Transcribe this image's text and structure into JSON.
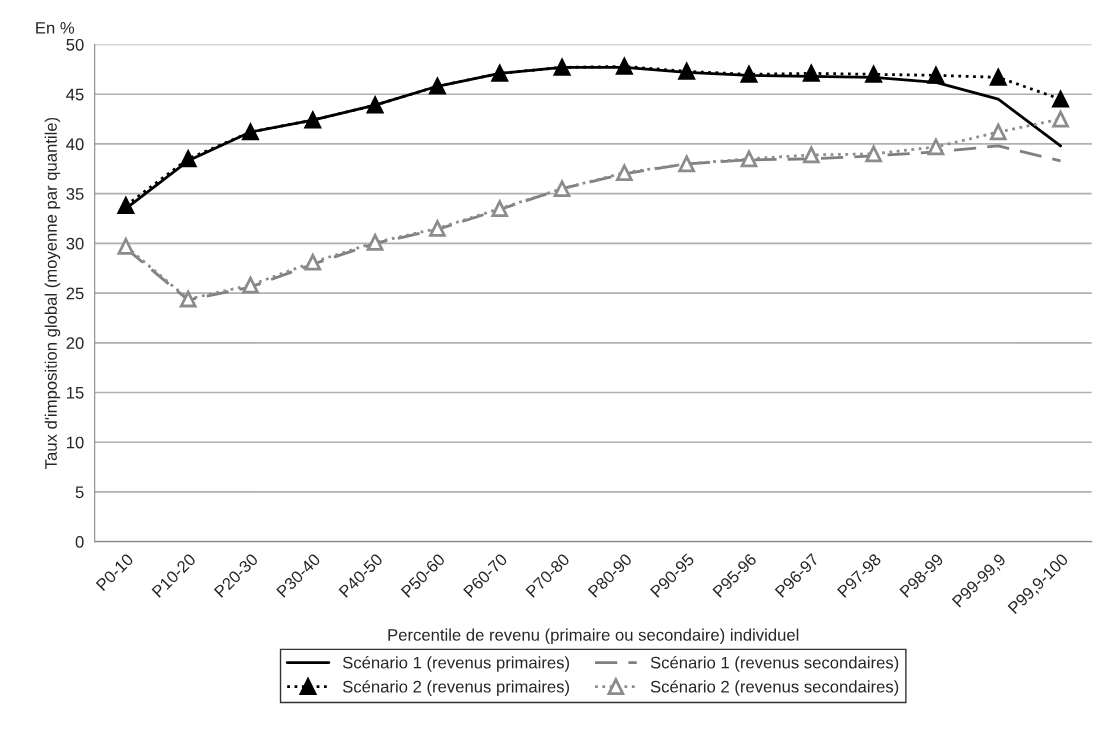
{
  "chart_data": {
    "type": "line",
    "xlabel": "Percentile de revenu (primaire ou secondaire) individuel",
    "ylabel": "Taux d'imposition global (moyenne par quantile)",
    "annotations": [
      "En %"
    ],
    "categories": [
      "P0-10",
      "P10-20",
      "P20-30",
      "P30-40",
      "P40-50",
      "P50-60",
      "P60-70",
      "P70-80",
      "P80-90",
      "P90-95",
      "P95-96",
      "P96-97",
      "P97-98",
      "P98-99",
      "P99-99,9",
      "P99,9-100"
    ],
    "ylim": [
      0,
      50
    ],
    "yticks": [
      0,
      5,
      10,
      15,
      20,
      25,
      30,
      35,
      40,
      45,
      50
    ],
    "grid": "y",
    "legend": "bottom",
    "series": [
      {
        "name": "Scénario 1 (revenus primaires)",
        "color": "#000000",
        "line_style": "solid",
        "marker": "none",
        "values": [
          33.5,
          38.3,
          41.2,
          42.4,
          43.9,
          45.8,
          47.1,
          47.7,
          47.7,
          47.2,
          46.9,
          46.8,
          46.7,
          46.2,
          44.5,
          39.8
        ]
      },
      {
        "name": "Scénario 1 (revenus secondaires)",
        "color": "#7f7f7f",
        "line_style": "dashed",
        "marker": "none",
        "values": [
          29.5,
          24.3,
          25.6,
          27.9,
          30.0,
          31.4,
          33.4,
          35.5,
          37.0,
          38.0,
          38.4,
          38.5,
          38.8,
          39.2,
          39.8,
          38.3
        ]
      },
      {
        "name": "Scénario 2 (revenus primaires)",
        "color": "#000000",
        "line_style": "dotted",
        "marker": "triangle",
        "values": [
          33.8,
          38.5,
          41.2,
          42.4,
          43.9,
          45.8,
          47.1,
          47.7,
          47.8,
          47.3,
          47.0,
          47.1,
          47.0,
          46.9,
          46.7,
          44.5
        ]
      },
      {
        "name": "Scénario 2 (revenus secondaires)",
        "color": "#8c8c8c",
        "line_style": "dotted",
        "marker": "triangle",
        "values": [
          29.7,
          24.4,
          25.8,
          28.1,
          30.1,
          31.5,
          33.5,
          35.5,
          37.1,
          38.0,
          38.5,
          38.9,
          39.0,
          39.7,
          41.2,
          42.5
        ]
      }
    ]
  }
}
